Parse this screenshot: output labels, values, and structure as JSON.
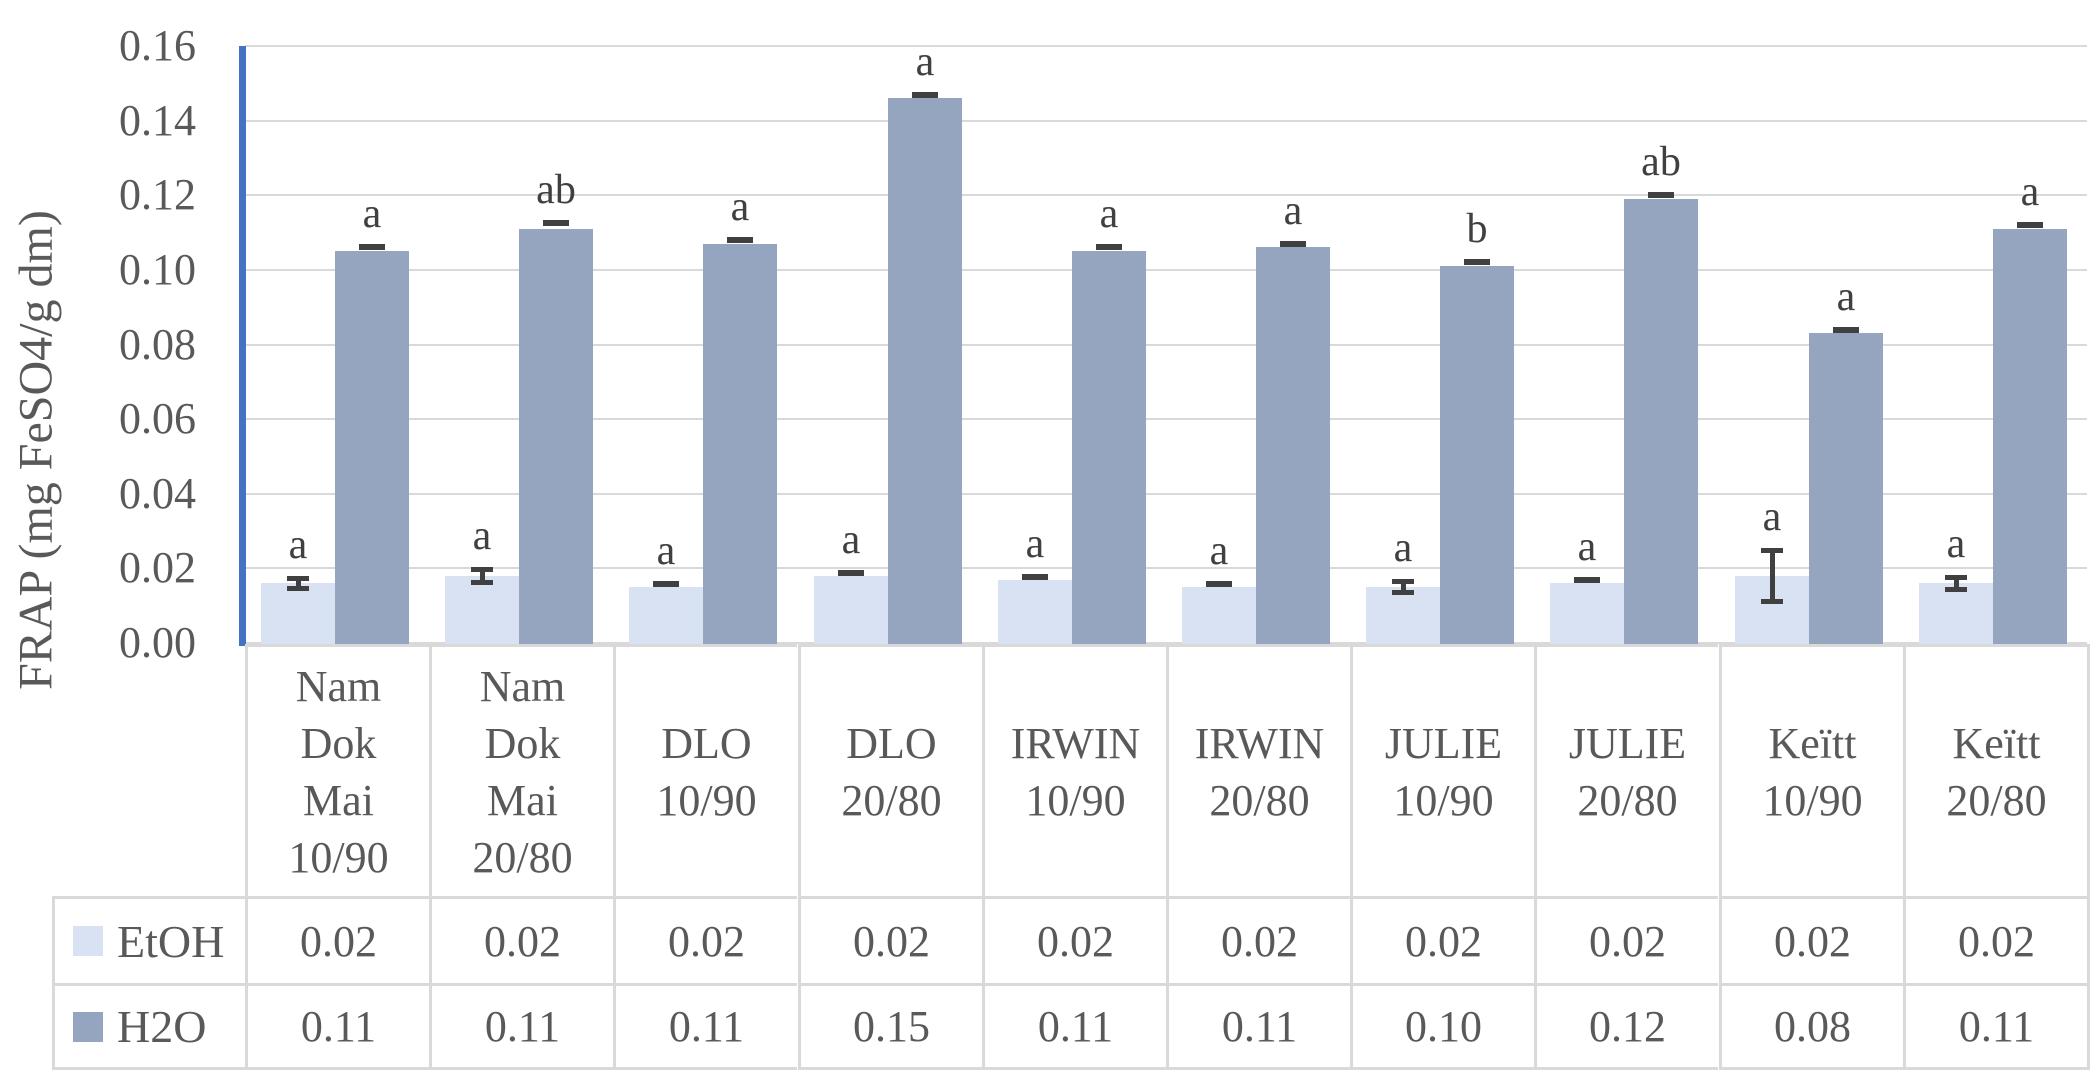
{
  "chart_data": {
    "type": "bar",
    "title": "",
    "xlabel": "",
    "ylabel": "FRAP (mg FeSO4/g dm)",
    "ylim": [
      0,
      0.16
    ],
    "ytick_step": 0.02,
    "yticks": [
      "0.16",
      "0.14",
      "0.12",
      "0.10",
      "0.08",
      "0.06",
      "0.04",
      "0.02",
      "0.00"
    ],
    "grid": true,
    "legend_position": "data-table-left-column",
    "categories": [
      "Nam Dok Mai 10/90",
      "Nam Dok Mai 20/80",
      "DLO 10/90",
      "DLO 20/80",
      "IRWIN 10/90",
      "IRWIN 20/80",
      "JULIE 10/90",
      "JULIE 20/80",
      "Keïtt 10/90",
      "Keïtt 20/80"
    ],
    "category_label_lines": [
      [
        "Nam",
        "Dok",
        "Mai",
        "10/90"
      ],
      [
        "Nam",
        "Dok",
        "Mai",
        "20/80"
      ],
      [
        "DLO",
        "10/90"
      ],
      [
        "DLO",
        "20/80"
      ],
      [
        "IRWIN",
        "10/90"
      ],
      [
        "IRWIN",
        "20/80"
      ],
      [
        "JULIE",
        "10/90"
      ],
      [
        "JULIE",
        "20/80"
      ],
      [
        "Keïtt",
        "10/90"
      ],
      [
        "Keïtt",
        "20/80"
      ]
    ],
    "series": [
      {
        "name": "EtOH",
        "color": "#d9e2f3",
        "values": [
          0.016,
          0.018,
          0.015,
          0.018,
          0.017,
          0.015,
          0.015,
          0.016,
          0.018,
          0.016
        ],
        "table_values": [
          "0.02",
          "0.02",
          "0.02",
          "0.02",
          "0.02",
          "0.02",
          "0.02",
          "0.02",
          "0.02",
          "0.02"
        ],
        "sig_letters": [
          "a",
          "a",
          "a",
          "a",
          "a",
          "a",
          "a",
          "a",
          "a",
          "a"
        ],
        "errors": [
          {
            "e": 0.0015,
            "style": "beam"
          },
          {
            "e": 0.0018,
            "style": "beam"
          },
          {
            "e": 0.0008,
            "style": "dash"
          },
          {
            "e": 0.0008,
            "style": "dash"
          },
          {
            "e": 0.0008,
            "style": "dash"
          },
          {
            "e": 0.0008,
            "style": "dash"
          },
          {
            "e": 0.0015,
            "style": "beam"
          },
          {
            "e": 0.0008,
            "style": "dash"
          },
          {
            "e": 0.007,
            "style": "beam"
          },
          {
            "e": 0.0018,
            "style": "beam"
          }
        ]
      },
      {
        "name": "H2O",
        "color": "#95a5c0",
        "values": [
          0.105,
          0.111,
          0.107,
          0.146,
          0.105,
          0.106,
          0.101,
          0.119,
          0.083,
          0.111
        ],
        "table_values": [
          "0.11",
          "0.11",
          "0.11",
          "0.15",
          "0.11",
          "0.11",
          "0.10",
          "0.12",
          "0.08",
          "0.11"
        ],
        "sig_letters": [
          "a",
          "ab",
          "a",
          "a",
          "a",
          "a",
          "b",
          "ab",
          "a",
          "a"
        ],
        "errors": [
          {
            "e": 0.001,
            "style": "dash"
          },
          {
            "e": 0.0015,
            "style": "dash"
          },
          {
            "e": 0.001,
            "style": "dash"
          },
          {
            "e": 0.001,
            "style": "dash"
          },
          {
            "e": 0.001,
            "style": "dash"
          },
          {
            "e": 0.001,
            "style": "dash"
          },
          {
            "e": 0.001,
            "style": "dash"
          },
          {
            "e": 0.001,
            "style": "dash"
          },
          {
            "e": 0.001,
            "style": "dash"
          },
          {
            "e": 0.001,
            "style": "dash"
          }
        ]
      }
    ],
    "colors": {
      "axis_line": "#4472c4",
      "gridline": "#d9d9d9",
      "table_border": "#d9d9d9",
      "text": "#595959",
      "annotation": "#404040"
    }
  }
}
